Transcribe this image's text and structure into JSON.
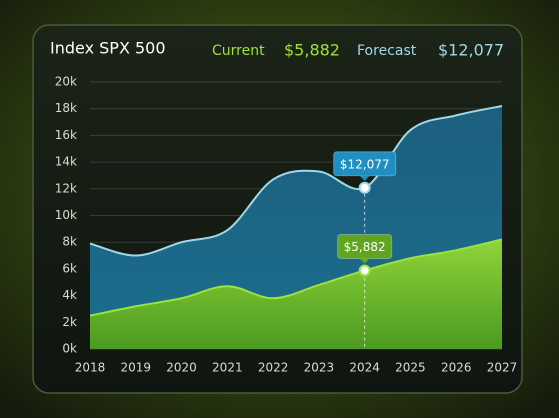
{
  "chart_data": {
    "type": "area",
    "title": "Index SPX 500",
    "categories": [
      "2018",
      "2019",
      "2020",
      "2021",
      "2022",
      "2023",
      "2024",
      "2025",
      "2026",
      "2027"
    ],
    "series": [
      {
        "name": "Current",
        "color": "#9be33a",
        "values": [
          2.5,
          3.2,
          3.8,
          4.7,
          3.8,
          4.8,
          5.882,
          6.8,
          7.4,
          8.2
        ],
        "value_labels": [
          null,
          null,
          null,
          null,
          null,
          null,
          "$5,882",
          null,
          null,
          null
        ]
      },
      {
        "name": "Forecast",
        "color": "#9fd8e8",
        "values": [
          7.9,
          7.0,
          8.0,
          8.9,
          12.7,
          13.3,
          12.077,
          16.4,
          17.5,
          18.2
        ],
        "value_labels": [
          null,
          null,
          null,
          null,
          null,
          null,
          "$12,077",
          null,
          null,
          null
        ]
      }
    ],
    "ylim": [
      0,
      20
    ],
    "yticks": [
      {
        "value": 0,
        "label": "0k"
      },
      {
        "value": 2,
        "label": "2k"
      },
      {
        "value": 4,
        "label": "4k"
      },
      {
        "value": 6,
        "label": "6k"
      },
      {
        "value": 8,
        "label": "8k"
      },
      {
        "value": 10,
        "label": "10k"
      },
      {
        "value": 12,
        "label": "12k"
      },
      {
        "value": 14,
        "label": "14k"
      },
      {
        "value": 16,
        "label": "16k"
      },
      {
        "value": 18,
        "label": "18k"
      },
      {
        "value": 20,
        "label": "20k"
      }
    ],
    "grid": true
  }
}
